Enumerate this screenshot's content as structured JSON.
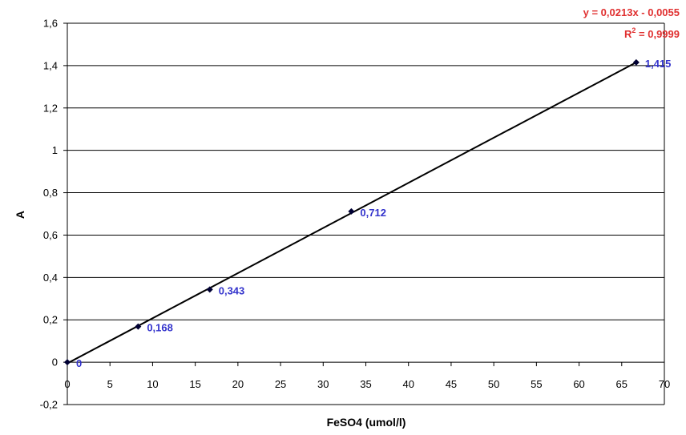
{
  "chart_data": {
    "type": "scatter",
    "title": "",
    "xlabel": "FeSO4 (umol/l)",
    "ylabel": "A",
    "xlim": [
      0,
      70
    ],
    "ylim": [
      -0.2,
      1.6
    ],
    "x_ticks": [
      "0",
      "5",
      "10",
      "15",
      "20",
      "25",
      "30",
      "35",
      "40",
      "45",
      "50",
      "55",
      "60",
      "65",
      "70"
    ],
    "y_ticks": [
      "-0,2",
      "0",
      "0,2",
      "0,4",
      "0,6",
      "0,8",
      "1",
      "1,2",
      "1,4",
      "1,6"
    ],
    "grid": "horizontal",
    "series": [
      {
        "points": [
          {
            "x": 0,
            "y": 0,
            "label": "0"
          },
          {
            "x": 8.3,
            "y": 0.168,
            "label": "0,168"
          },
          {
            "x": 16.7,
            "y": 0.343,
            "label": "0,343"
          },
          {
            "x": 33.3,
            "y": 0.712,
            "label": "0,712"
          },
          {
            "x": 66.7,
            "y": 1.415,
            "label": "1,415"
          }
        ],
        "marker": "diamond",
        "color": "#000033"
      }
    ],
    "trendline": {
      "type": "linear",
      "slope": 0.0213,
      "intercept": -0.0055,
      "x_range": [
        0,
        66.7
      ],
      "color": "#000000",
      "equation": "y = 0,0213x - 0,0055",
      "r_squared_prefix": "R",
      "r_squared_superscript": "2",
      "r_squared_value": " = 0,9999"
    },
    "colors": {
      "data_label": "#3333cc",
      "equation": "#e03030",
      "grid": "#000000"
    }
  }
}
